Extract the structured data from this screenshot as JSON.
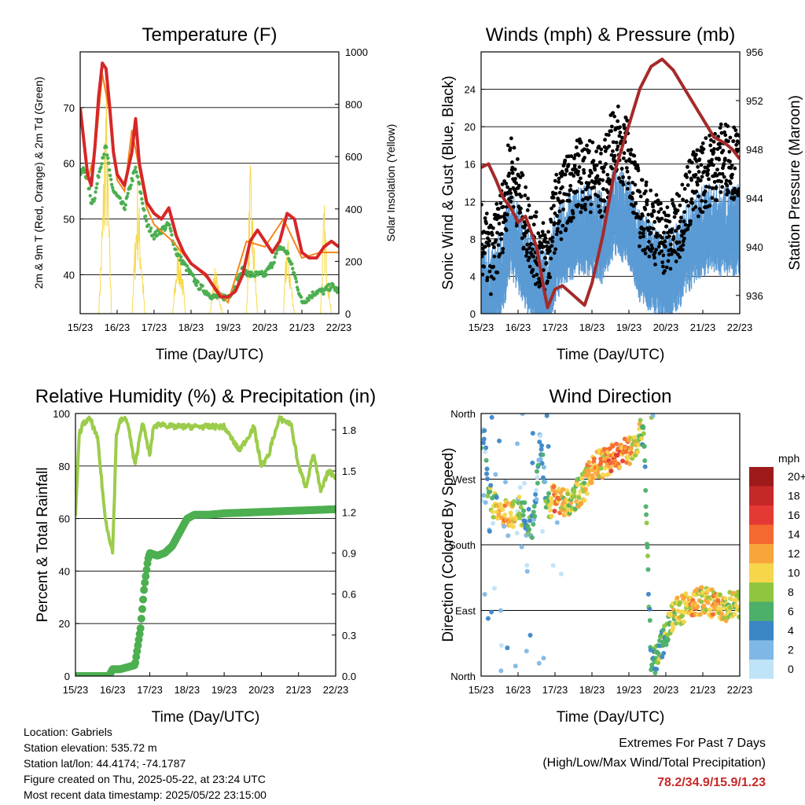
{
  "chart_data": [
    {
      "type": "line",
      "title": "Temperature (F)",
      "xlabel": "Time (Day/UTC)",
      "ylabel": "2m & 9m T (Red, Orange) & 2m Td (Green)",
      "ylabel_right": "Solar Insolation (Yellow)",
      "x_ticks": [
        "15/23",
        "16/23",
        "17/23",
        "18/23",
        "19/23",
        "20/23",
        "21/23",
        "22/23"
      ],
      "ylim": [
        33,
        80
      ],
      "y_ticks": [
        40,
        50,
        60,
        70
      ],
      "y2lim": [
        0,
        1000
      ],
      "y2_ticks": [
        0,
        200,
        400,
        600,
        800,
        1000
      ],
      "grid": true,
      "series": [
        {
          "name": "2m T",
          "color": "#d62728",
          "x": [
            0,
            0.1,
            0.2,
            0.3,
            0.4,
            0.5,
            0.6,
            0.7,
            0.8,
            0.9,
            1.0,
            1.2,
            1.4,
            1.5,
            1.6,
            1.8,
            2.0,
            2.2,
            2.4,
            2.6,
            2.8,
            3.0,
            3.2,
            3.4,
            3.6,
            3.8,
            4.0,
            4.2,
            4.4,
            4.6,
            4.8,
            5.0,
            5.2,
            5.4,
            5.6,
            5.8,
            6.0,
            6.2,
            6.4,
            6.6,
            6.8,
            7.0
          ],
          "y": [
            70,
            64,
            58,
            56,
            63,
            72,
            78,
            77,
            70,
            62,
            58,
            56,
            62,
            68,
            60,
            53,
            51,
            50,
            52,
            47,
            44,
            42,
            41,
            40,
            38,
            36,
            36,
            37,
            40,
            46,
            48,
            46,
            44,
            46,
            51,
            50,
            44,
            43,
            43,
            45,
            46,
            45
          ]
        },
        {
          "name": "9m T",
          "color": "#f58518",
          "x": [
            0,
            0.2,
            0.4,
            0.6,
            0.8,
            1.0,
            1.2,
            1.4,
            1.6,
            1.8,
            2.0,
            2.5,
            3.0,
            3.5,
            4.0,
            4.5,
            5.0,
            5.5,
            6.0,
            6.5,
            7.0
          ],
          "y": [
            69,
            57,
            62,
            76,
            69,
            57,
            55,
            66,
            59,
            52,
            49,
            46,
            42,
            39,
            35,
            46,
            45,
            50,
            43,
            44,
            44
          ]
        },
        {
          "name": "2m Td",
          "color": "#4caf50",
          "x": [
            0,
            0.1,
            0.2,
            0.3,
            0.4,
            0.5,
            0.6,
            0.7,
            0.8,
            0.9,
            1.0,
            1.2,
            1.4,
            1.5,
            1.6,
            1.8,
            2.0,
            2.2,
            2.4,
            2.6,
            2.8,
            3.0,
            3.2,
            3.4,
            3.6,
            3.8,
            4.0,
            4.2,
            4.4,
            4.6,
            4.8,
            5.0,
            5.2,
            5.4,
            5.6,
            5.8,
            6.0,
            6.2,
            6.4,
            6.6,
            6.8,
            7.0
          ],
          "y": [
            58,
            59,
            57,
            53,
            54,
            58,
            61,
            63,
            58,
            55,
            54,
            52,
            57,
            59,
            56,
            49,
            47,
            48,
            49,
            44,
            42,
            40,
            38,
            37,
            36,
            36,
            36,
            38,
            41,
            40,
            40,
            40,
            42,
            45,
            44,
            40,
            35,
            36,
            37,
            37,
            38,
            37
          ]
        },
        {
          "name": "Solar",
          "color": "#f7d94c",
          "axis": "right",
          "x": [
            0,
            0.5,
            0.62,
            0.7,
            0.78,
            0.85,
            1.0,
            1.4,
            1.55,
            1.65,
            1.75,
            2.0,
            2.5,
            2.65,
            2.75,
            2.85,
            3.0,
            3.5,
            3.65,
            3.75,
            3.85,
            4.0,
            4.5,
            4.6,
            4.7,
            4.8,
            5.0,
            5.5,
            5.6,
            5.7,
            5.8,
            6.0,
            6.5,
            6.6,
            6.7,
            6.8,
            7.0
          ],
          "y": [
            0,
            0,
            500,
            1000,
            400,
            0,
            0,
            0,
            550,
            300,
            0,
            0,
            0,
            300,
            200,
            0,
            0,
            0,
            200,
            100,
            0,
            0,
            0,
            600,
            300,
            0,
            0,
            0,
            350,
            150,
            0,
            0,
            0,
            450,
            200,
            0,
            0
          ]
        }
      ]
    },
    {
      "type": "scatter",
      "title": "Winds (mph) & Pressure (mb)",
      "xlabel": "Time (Day/UTC)",
      "ylabel": "Sonic Wind & Gust (Blue, Black)",
      "ylabel_right": "Station Pressure (Maroon)",
      "x_ticks": [
        "15/23",
        "16/23",
        "17/23",
        "18/23",
        "19/23",
        "20/23",
        "21/23",
        "22/23"
      ],
      "ylim": [
        0,
        28
      ],
      "y_ticks": [
        0,
        4,
        8,
        12,
        16,
        20,
        24
      ],
      "y2lim": [
        934.5,
        956
      ],
      "y2_ticks": [
        936,
        940,
        944,
        948,
        952,
        956
      ],
      "grid": true,
      "series": [
        {
          "name": "Gust",
          "color": "#000000",
          "x": [
            0,
            0.3,
            0.6,
            0.8,
            1.0,
            1.2,
            1.5,
            1.8,
            2.0,
            2.3,
            2.6,
            3.0,
            3.3,
            3.6,
            4.0,
            4.3,
            4.6,
            5.0,
            5.3,
            5.6,
            6.0,
            6.3,
            6.6,
            7.0
          ],
          "y": [
            7,
            5,
            10,
            15,
            12,
            9,
            6,
            5,
            10,
            12,
            14,
            14,
            13,
            18,
            16,
            10,
            9,
            7,
            8,
            12,
            14,
            15,
            16,
            15
          ]
        },
        {
          "name": "Wind",
          "color": "#5b9bd5",
          "x": [
            0,
            0.3,
            0.6,
            0.8,
            1.0,
            1.2,
            1.5,
            1.8,
            2.0,
            2.3,
            2.6,
            3.0,
            3.3,
            3.6,
            4.0,
            4.3,
            4.6,
            5.0,
            5.3,
            5.6,
            6.0,
            6.3,
            6.6,
            7.0
          ],
          "y": [
            3,
            2,
            5,
            9,
            7,
            5,
            3,
            2,
            6,
            8,
            9,
            9,
            8,
            11,
            10,
            6,
            5,
            4,
            5,
            7,
            9,
            9,
            9,
            9
          ]
        },
        {
          "name": "Pressure",
          "color": "#a52a2a",
          "axis": "right",
          "x": [
            0,
            0.2,
            0.4,
            0.6,
            0.8,
            1.0,
            1.2,
            1.5,
            1.7,
            1.8,
            2.0,
            2.2,
            2.5,
            2.8,
            3.0,
            3.3,
            3.6,
            4.0,
            4.3,
            4.6,
            4.9,
            5.2,
            5.5,
            5.8,
            6.0,
            6.3,
            6.6,
            6.8,
            7.0
          ],
          "y": [
            946.5,
            946.8,
            945.5,
            944,
            943.2,
            942,
            942.5,
            940,
            936.5,
            935,
            936.5,
            936.8,
            936,
            935.2,
            937,
            941,
            946,
            950,
            953,
            954.8,
            955.4,
            954.5,
            953,
            951.5,
            950.5,
            949,
            948.5,
            948,
            947.2
          ]
        }
      ]
    },
    {
      "type": "line",
      "title": "Relative Humidity (%) & Precipitation (in)",
      "xlabel": "Time (Day/UTC)",
      "ylabel": "Percent & Total Rainfall",
      "x_ticks": [
        "15/23",
        "16/23",
        "17/23",
        "18/23",
        "19/23",
        "20/23",
        "21/23",
        "22/23"
      ],
      "ylim": [
        0,
        100
      ],
      "y_ticks": [
        0,
        20,
        40,
        60,
        80,
        100
      ],
      "y2lim": [
        0,
        1.92
      ],
      "y2_ticks": [
        0.0,
        0.3,
        0.6,
        0.9,
        1.2,
        1.5,
        1.8
      ],
      "grid": true,
      "series": [
        {
          "name": "RH",
          "color": "#9ccc4b",
          "x": [
            0,
            0.1,
            0.2,
            0.4,
            0.6,
            0.8,
            1.0,
            1.1,
            1.2,
            1.3,
            1.4,
            1.6,
            1.8,
            2.0,
            2.1,
            2.3,
            2.6,
            3.0,
            3.5,
            4.0,
            4.4,
            4.6,
            4.8,
            5.0,
            5.2,
            5.3,
            5.5,
            5.8,
            6.0,
            6.2,
            6.4,
            6.6,
            6.8,
            7.0
          ],
          "y": [
            60,
            92,
            96,
            98,
            90,
            60,
            47,
            92,
            97,
            98,
            97,
            80,
            97,
            84,
            95,
            96,
            95,
            95,
            95,
            95,
            86,
            90,
            95,
            80,
            84,
            90,
            98,
            96,
            80,
            72,
            85,
            70,
            78,
            76
          ]
        },
        {
          "name": "Precipitation",
          "color": "#4caf50",
          "axis": "right",
          "x": [
            0,
            0.5,
            0.9,
            1.0,
            1.2,
            1.6,
            1.75,
            1.85,
            1.95,
            2.0,
            2.2,
            2.4,
            2.6,
            2.8,
            3.0,
            3.2,
            3.6,
            4.0,
            5.0,
            6.0,
            7.0
          ],
          "y": [
            0,
            0,
            0,
            0.05,
            0.05,
            0.08,
            0.35,
            0.65,
            0.85,
            0.9,
            0.88,
            0.9,
            0.95,
            1.05,
            1.15,
            1.18,
            1.18,
            1.19,
            1.2,
            1.21,
            1.22
          ]
        }
      ]
    },
    {
      "type": "scatter",
      "title": "Wind Direction",
      "xlabel": "Time (Day/UTC)",
      "ylabel": "Direction (Colored By Speed)",
      "x_ticks": [
        "15/23",
        "16/23",
        "17/23",
        "18/23",
        "19/23",
        "20/23",
        "21/23",
        "22/23"
      ],
      "y_ticks": [
        "North",
        "East",
        "South",
        "West",
        "North"
      ],
      "ylim": [
        0,
        360
      ],
      "grid": true,
      "legend_title": "mph",
      "legend_labels": [
        "20+",
        "18",
        "16",
        "14",
        "12",
        "10",
        "8",
        "6",
        "4",
        "2",
        "0"
      ],
      "legend_colors": [
        "#9e1a1a",
        "#c62828",
        "#e53935",
        "#f4692f",
        "#f8a53b",
        "#f6d64b",
        "#8fc640",
        "#4caf6a",
        "#3c86c6",
        "#7fb8e6",
        "#bfe3f7"
      ],
      "legend_position": "right",
      "series": [
        {
          "name": "Direction",
          "x": [
            0.1,
            0.2,
            0.4,
            0.6,
            0.8,
            1.0,
            1.2,
            1.4,
            1.6,
            1.8,
            2.0,
            2.2,
            2.4,
            2.6,
            2.8,
            3.0,
            3.2,
            3.4,
            3.6,
            3.8,
            4.0,
            4.2,
            4.4,
            4.6,
            4.8,
            5.0,
            5.2,
            5.4,
            5.6,
            5.8,
            6.0,
            6.2,
            6.4,
            6.6,
            6.8,
            7.0
          ],
          "y": [
            330,
            250,
            230,
            225,
            215,
            230,
            220,
            200,
            320,
            230,
            245,
            240,
            235,
            250,
            260,
            285,
            290,
            295,
            300,
            305,
            310,
            320,
            340,
            10,
            30,
            60,
            85,
            90,
            95,
            100,
            105,
            100,
            95,
            90,
            100,
            95
          ],
          "speed": [
            3,
            6,
            8,
            12,
            10,
            8,
            6,
            4,
            3,
            6,
            14,
            10,
            8,
            9,
            10,
            12,
            11,
            12,
            14,
            13,
            12,
            10,
            7,
            5,
            6,
            7,
            9,
            10,
            11,
            12,
            9,
            10,
            11,
            9,
            8,
            10
          ]
        }
      ]
    }
  ],
  "info": {
    "location": "Location: Gabriels",
    "elevation": "Station elevation: 535.72 m",
    "latlon": "Station lat/lon: 44.4174; -74.1787",
    "created": "Figure created on Thu, 2025-05-22, at 23:24 UTC",
    "recent": "Most recent data timestamp: 2025/05/22 23:15:00"
  },
  "extremes": {
    "title": "Extremes For Past 7 Days",
    "subtitle": "(High/Low/Max Wind/Total Precipitation)",
    "value": "78.2/34.9/15.9/1.23"
  }
}
